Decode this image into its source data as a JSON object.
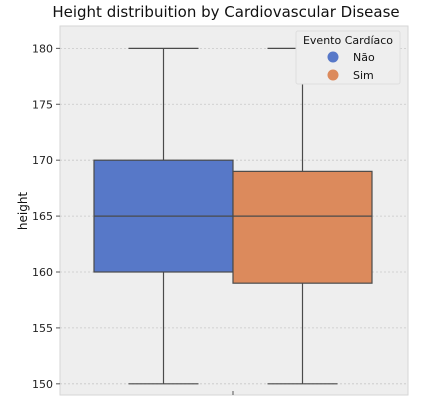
{
  "chart_data": {
    "type": "boxplot",
    "title": "Height distribuition by Cardiovascular Disease",
    "xlabel": "",
    "ylabel": "height",
    "ylim": [
      149,
      182
    ],
    "yticks": [
      150,
      155,
      160,
      165,
      170,
      175,
      180
    ],
    "grid": true,
    "legend": {
      "title": "Evento Cardíaco",
      "placement": "top-right"
    },
    "series": [
      {
        "name": "Não",
        "color": "#5778c8",
        "whisker_low": 150,
        "q1": 160,
        "median": 165,
        "q3": 170,
        "whisker_high": 180
      },
      {
        "name": "Sim",
        "color": "#dc8a5c",
        "whisker_low": 150,
        "q1": 159,
        "median": 165,
        "q3": 169,
        "whisker_high": 180
      }
    ]
  }
}
